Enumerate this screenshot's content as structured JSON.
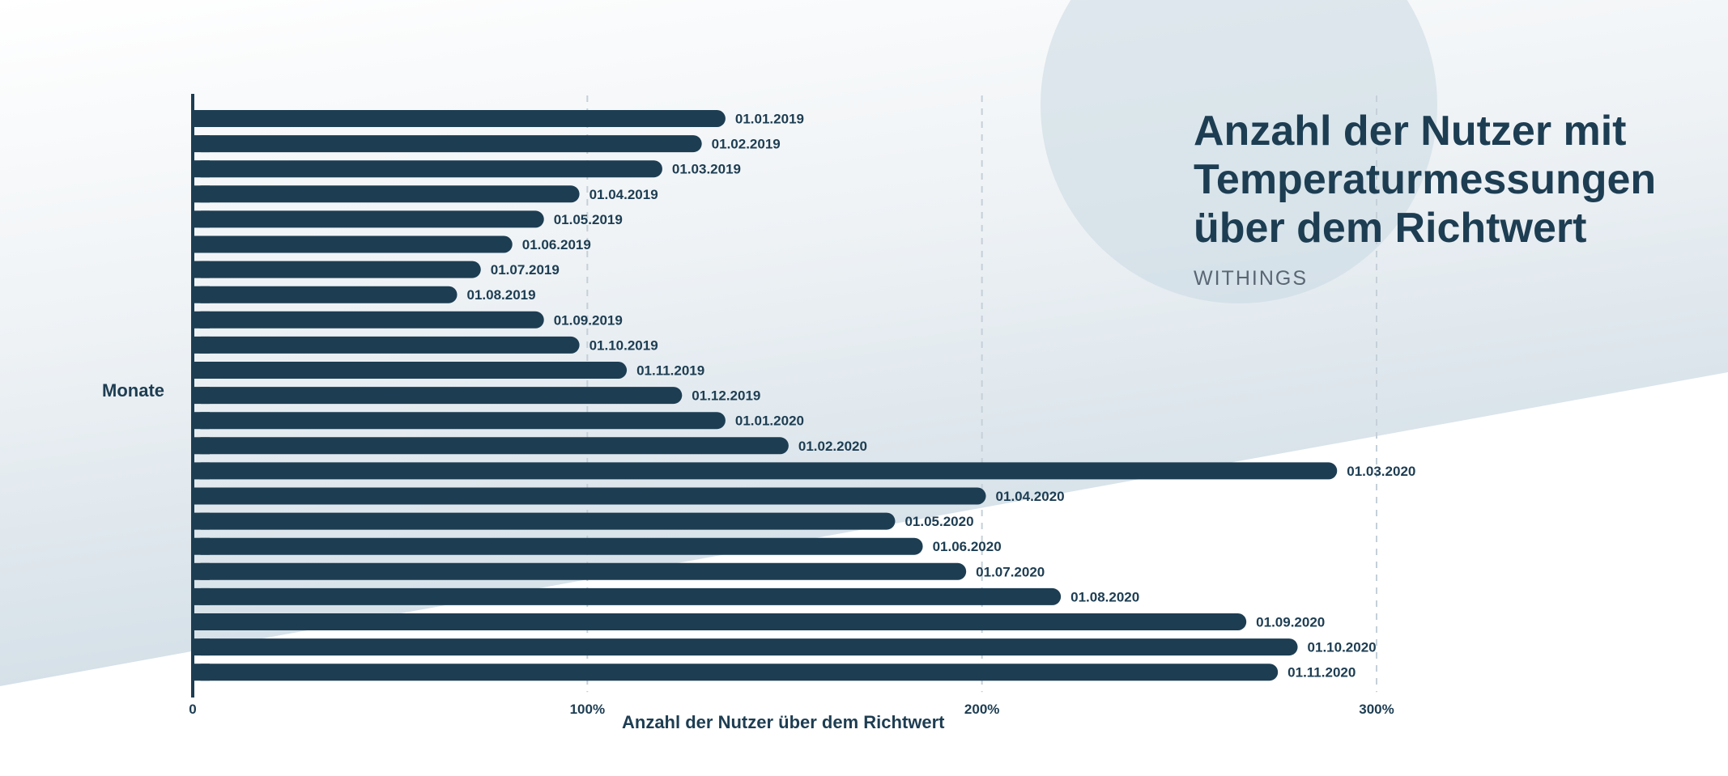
{
  "title_lines": [
    "Anzahl der Nutzer mit",
    "Temperaturmessungen",
    "über dem Richtwert"
  ],
  "subtitle": "WITHINGS",
  "colors": {
    "bar": "#1d3d52",
    "text": "#1d3d52",
    "subtitle": "#5a6673",
    "background_shape": "#d4e0e8",
    "circle": "#c9d8e2",
    "grid": "#c5d0d8"
  },
  "chart_data": {
    "type": "bar",
    "orientation": "horizontal",
    "title": "Anzahl der Nutzer mit Temperaturmessungen über dem Richtwert",
    "xlabel": "Anzahl der Nutzer über dem Richtwert",
    "ylabel": "Monate",
    "xlim": [
      0,
      300
    ],
    "x_ticks": [
      {
        "value": 0,
        "label": "0"
      },
      {
        "value": 100,
        "label": "100%"
      },
      {
        "value": 200,
        "label": "200%"
      },
      {
        "value": 300,
        "label": "300%"
      }
    ],
    "grid": "vertical dashed",
    "categories": [
      "01.01.2019",
      "01.02.2019",
      "01.03.2019",
      "01.04.2019",
      "01.05.2019",
      "01.06.2019",
      "01.07.2019",
      "01.08.2019",
      "01.09.2019",
      "01.10.2019",
      "01.11.2019",
      "01.12.2019",
      "01.01.2020",
      "01.02.2020",
      "01.03.2020",
      "01.04.2020",
      "01.05.2020",
      "01.06.2020",
      "01.07.2020",
      "01.08.2020",
      "01.09.2020",
      "01.10.2020",
      "01.11.2020"
    ],
    "values": [
      135,
      129,
      119,
      98,
      89,
      81,
      73,
      67,
      89,
      98,
      110,
      124,
      135,
      151,
      290,
      201,
      178,
      185,
      196,
      220,
      267,
      280,
      275
    ]
  }
}
